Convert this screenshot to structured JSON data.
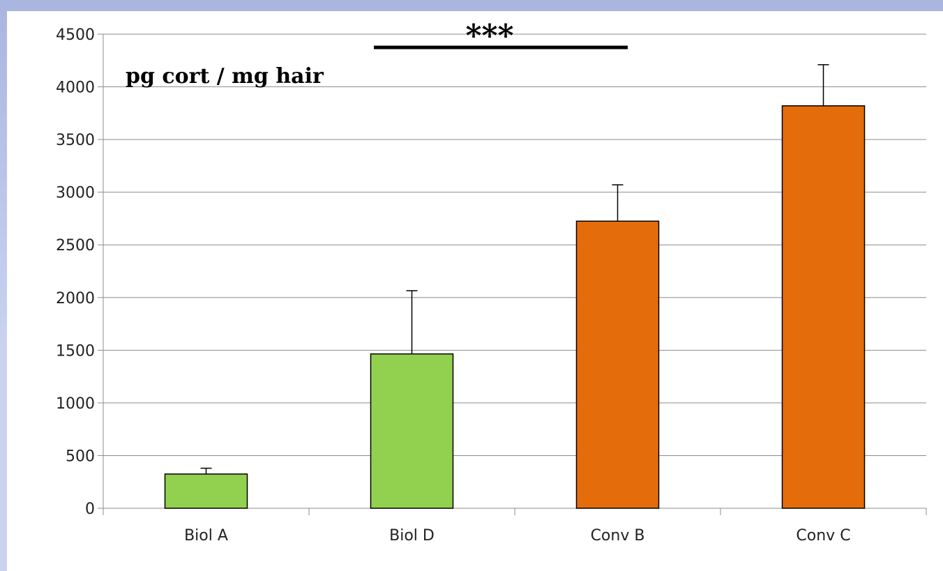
{
  "chart_data": {
    "type": "bar",
    "categories": [
      "Biol A",
      "Biol D",
      "Conv B",
      "Conv C"
    ],
    "values": [
      325,
      1465,
      2725,
      3820
    ],
    "errors": [
      55,
      600,
      345,
      390
    ],
    "colors": [
      "#92d050",
      "#92d050",
      "#e46c0a",
      "#e46c0a"
    ],
    "ylim": [
      0,
      4500
    ],
    "yticks": [
      0,
      500,
      1000,
      1500,
      2000,
      2500,
      3000,
      3500,
      4000,
      4500
    ],
    "ylabel": "pg cort / mg hair",
    "xlabel": "",
    "grid": true,
    "annotation": {
      "text": "***",
      "spans": [
        "Biol A-Biol D",
        "Conv B-Conv C"
      ]
    }
  }
}
